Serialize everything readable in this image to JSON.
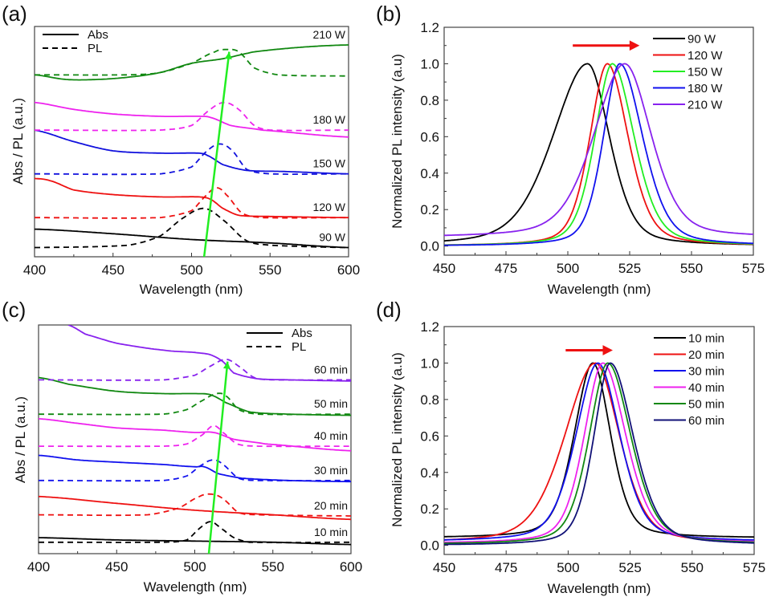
{
  "chart_data": [
    {
      "panel": "(a)",
      "type": "line",
      "title": "",
      "xlabel": "Wavelength (nm)",
      "ylabel": "Abs / PL (a.u.)",
      "xlim": [
        400,
        600
      ],
      "xticks": [
        400,
        450,
        500,
        550,
        600
      ],
      "yticks": [],
      "ylim": [
        0,
        1
      ],
      "legend": {
        "position": "top-left",
        "entries": [
          {
            "label": "Abs",
            "style": "solid"
          },
          {
            "label": "PL",
            "style": "dashed"
          }
        ]
      },
      "annotation": {
        "type": "arrow",
        "color": "#22ee22",
        "from": [
          508,
          0.0
        ],
        "to": [
          524,
          0.89
        ],
        "description": "PL peak red-shift guide"
      },
      "series": [
        {
          "name": "90 W",
          "color": "#000000",
          "offset": 0.04,
          "abs": {
            "x": [
              400,
              450,
              500,
              550,
              600
            ],
            "y": [
              0.08,
              0.06,
              0.035,
              0.02,
              0.0
            ]
          },
          "pl": {
            "x": [
              400,
              460,
              480,
              495,
              508,
              520,
              535,
              550,
              600
            ],
            "y": [
              0.0,
              0.01,
              0.05,
              0.13,
              0.17,
              0.12,
              0.03,
              0.01,
              0.0
            ]
          },
          "label": "90 W"
        },
        {
          "name": "120 W",
          "color": "#ee1111",
          "offset": 0.17,
          "abs": {
            "x": [
              400,
              410,
              425,
              450,
              480,
              505,
              512,
              520,
              530,
              550,
              600
            ],
            "y": [
              0.17,
              0.16,
              0.12,
              0.1,
              0.09,
              0.09,
              0.08,
              0.04,
              0.01,
              0.005,
              0.0
            ]
          },
          "pl": {
            "x": [
              400,
              480,
              500,
              510,
              516,
              522,
              532,
              545,
              600
            ],
            "y": [
              0.0,
              0.0,
              0.03,
              0.1,
              0.13,
              0.1,
              0.02,
              0.0,
              0.0
            ]
          },
          "label": "120 W"
        },
        {
          "name": "150 W",
          "color": "#1111dd",
          "offset": 0.36,
          "abs": {
            "x": [
              400,
              425,
              450,
              480,
              505,
              510,
              520,
              535,
              560,
              600
            ],
            "y": [
              0.19,
              0.14,
              0.1,
              0.09,
              0.09,
              0.08,
              0.04,
              0.015,
              0.01,
              0.0
            ]
          },
          "pl": {
            "x": [
              400,
              480,
              500,
              510,
              518,
              526,
              535,
              550,
              600
            ],
            "y": [
              0.0,
              0.0,
              0.03,
              0.1,
              0.13,
              0.1,
              0.02,
              0.0,
              0.0
            ]
          },
          "label": "150 W"
        },
        {
          "name": "180 W",
          "color": "#ee22ee",
          "offset": 0.55,
          "abs": {
            "x": [
              400,
              425,
              450,
              480,
              505,
              512,
              525,
              545,
              600
            ],
            "y": [
              0.12,
              0.09,
              0.07,
              0.06,
              0.06,
              0.055,
              0.02,
              0.0,
              -0.03
            ]
          },
          "pl": {
            "x": [
              400,
              480,
              500,
              512,
              521,
              530,
              540,
              550,
              600
            ],
            "y": [
              0.0,
              0.0,
              0.02,
              0.09,
              0.12,
              0.09,
              0.02,
              0.0,
              0.0
            ]
          },
          "label": "180 W"
        },
        {
          "name": "210 W",
          "color": "#118811",
          "offset": 0.79,
          "abs": {
            "x": [
              400,
              420,
              440,
              460,
              480,
              500,
              520,
              540,
              570,
              600
            ],
            "y": [
              0.0,
              -0.02,
              -0.02,
              -0.01,
              0.01,
              0.05,
              0.07,
              0.1,
              0.12,
              0.13
            ]
          },
          "pl": {
            "x": [
              400,
              460,
              480,
              500,
              515,
              522,
              530,
              540,
              555,
              600
            ],
            "y": [
              0.0,
              0.0,
              0.01,
              0.05,
              0.1,
              0.11,
              0.1,
              0.03,
              0.0,
              -0.005
            ]
          },
          "label": "210 W"
        }
      ]
    },
    {
      "panel": "(b)",
      "type": "line",
      "title": "",
      "xlabel": "Wavelength (nm)",
      "ylabel": "Normalized PL intensity (a.u)",
      "xlim": [
        450,
        575
      ],
      "ylim": [
        -0.05,
        1.2
      ],
      "xticks": [
        450,
        475,
        500,
        525,
        550,
        575
      ],
      "yticks": [
        0.0,
        0.2,
        0.4,
        0.6,
        0.8,
        1.0,
        1.2
      ],
      "ytick_labels": [
        "0.0",
        "0.2",
        "0.4",
        "0.6",
        "0.8",
        "1.0",
        "1.2"
      ],
      "legend": {
        "position": "top-right"
      },
      "annotation": {
        "type": "arrow",
        "color": "#ee1111",
        "from": [
          502,
          1.1
        ],
        "to": [
          529,
          1.1
        ],
        "description": "red-shift"
      },
      "series": [
        {
          "name": "90 W",
          "color": "#000000",
          "peak": 508,
          "left_width": 16,
          "right_width": 10,
          "baseline": 0.0,
          "start_value": 0.03
        },
        {
          "name": "120 W",
          "color": "#ee1111",
          "peak": 516,
          "left_width": 8,
          "right_width": 9.5,
          "baseline": 0.0
        },
        {
          "name": "150 W",
          "color": "#22ee22",
          "peak": 518,
          "left_width": 8,
          "right_width": 10,
          "baseline": 0.0
        },
        {
          "name": "180 W",
          "color": "#1111ee",
          "peak": 521,
          "left_width": 7.5,
          "right_width": 10.5,
          "baseline": 0.0
        },
        {
          "name": "210 W",
          "color": "#8822ee",
          "peak": 523,
          "left_width": 14,
          "right_width": 12,
          "baseline": 0.045
        }
      ]
    },
    {
      "panel": "(c)",
      "type": "line",
      "title": "",
      "xlabel": "Wavelength (nm)",
      "ylabel": "Abs / PL (a.u.)",
      "xlim": [
        400,
        600
      ],
      "xticks": [
        400,
        450,
        500,
        550,
        600
      ],
      "yticks": [],
      "ylim": [
        0,
        1
      ],
      "legend": {
        "position": "top-right",
        "entries": [
          {
            "label": "Abs",
            "style": "solid"
          },
          {
            "label": "PL",
            "style": "dashed"
          }
        ]
      },
      "annotation": {
        "type": "arrow",
        "color": "#22ee22",
        "from": [
          509,
          0.0
        ],
        "to": [
          521,
          0.84
        ],
        "description": "PL peak red-shift guide"
      },
      "series": [
        {
          "name": "10 min",
          "color": "#000000",
          "offset": 0.05,
          "abs": {
            "x": [
              400,
              450,
              500,
              550,
              600
            ],
            "y": [
              0.02,
              0.01,
              0.005,
              0.0,
              -0.01
            ]
          },
          "pl": {
            "x": [
              400,
              480,
              495,
              503,
              510,
              517,
              525,
              535,
              600
            ],
            "y": [
              0.0,
              0.0,
              0.01,
              0.06,
              0.09,
              0.06,
              0.02,
              0.0,
              0.0
            ]
          },
          "label": "10 min"
        },
        {
          "name": "20 min",
          "color": "#ee1111",
          "offset": 0.17,
          "abs": {
            "x": [
              400,
              450,
              500,
              550,
              600
            ],
            "y": [
              0.08,
              0.05,
              0.02,
              0.0,
              -0.02
            ]
          },
          "pl": {
            "x": [
              400,
              470,
              490,
              503,
              511,
              518,
              528,
              540,
              600
            ],
            "y": [
              0.0,
              0.0,
              0.03,
              0.08,
              0.09,
              0.07,
              0.01,
              0.0,
              -0.005
            ]
          },
          "label": "20 min"
        },
        {
          "name": "30 min",
          "color": "#1111ee",
          "offset": 0.32,
          "abs": {
            "x": [
              400,
              425,
              450,
              480,
              500,
              506,
              515,
              530,
              560,
              600
            ],
            "y": [
              0.11,
              0.09,
              0.08,
              0.07,
              0.06,
              0.06,
              0.03,
              0.01,
              0.0,
              -0.005
            ]
          },
          "pl": {
            "x": [
              400,
              480,
              495,
              505,
              512,
              518,
              528,
              540,
              600
            ],
            "y": [
              0.0,
              0.0,
              0.02,
              0.07,
              0.09,
              0.07,
              0.01,
              0.0,
              0.0
            ]
          },
          "label": "30 min"
        },
        {
          "name": "40 min",
          "color": "#ee22ee",
          "offset": 0.47,
          "abs": {
            "x": [
              400,
              425,
              450,
              480,
              500,
              512,
              525,
              545,
              600
            ],
            "y": [
              0.12,
              0.1,
              0.08,
              0.07,
              0.06,
              0.06,
              0.03,
              0.01,
              -0.02
            ]
          },
          "pl": {
            "x": [
              400,
              480,
              495,
              505,
              512,
              518,
              527,
              540,
              600
            ],
            "y": [
              0.0,
              0.0,
              0.01,
              0.05,
              0.09,
              0.06,
              0.01,
              0.0,
              0.0
            ]
          },
          "label": "40 min"
        },
        {
          "name": "50 min",
          "color": "#118811",
          "offset": 0.61,
          "abs": {
            "x": [
              400,
              420,
              450,
              480,
              500,
              510,
              520,
              535,
              560,
              600
            ],
            "y": [
              0.16,
              0.13,
              0.1,
              0.09,
              0.09,
              0.085,
              0.05,
              0.01,
              0.0,
              -0.005
            ]
          },
          "pl": {
            "x": [
              400,
              480,
              495,
              505,
              514,
              520,
              528,
              540,
              600
            ],
            "y": [
              0.0,
              0.0,
              0.02,
              0.06,
              0.09,
              0.08,
              0.02,
              0.0,
              0.0
            ]
          },
          "label": "50 min"
        },
        {
          "name": "60 min",
          "color": "#8822ee",
          "offset": 0.76,
          "abs": {
            "x": [
              419,
              430,
              450,
              480,
              500,
              510,
              518,
              525,
              540,
              560,
              600
            ],
            "y": [
              0.24,
              0.2,
              0.16,
              0.13,
              0.12,
              0.11,
              0.08,
              0.03,
              0.005,
              0.0,
              -0.005
            ]
          },
          "pl": {
            "x": [
              400,
              480,
              500,
              510,
              520,
              528,
              538,
              550,
              600
            ],
            "y": [
              0.0,
              0.0,
              0.02,
              0.06,
              0.09,
              0.06,
              0.01,
              0.0,
              0.0
            ]
          },
          "label": "60 min"
        }
      ]
    },
    {
      "panel": "(d)",
      "type": "line",
      "title": "",
      "xlabel": "Wavelength (nm)",
      "ylabel": "Normalized PL intensity (a.u)",
      "xlim": [
        450,
        575
      ],
      "ylim": [
        -0.05,
        1.2
      ],
      "xticks": [
        450,
        475,
        500,
        525,
        550,
        575
      ],
      "yticks": [
        0.0,
        0.2,
        0.4,
        0.6,
        0.8,
        1.0,
        1.2
      ],
      "ytick_labels": [
        "0.0",
        "0.2",
        "0.4",
        "0.6",
        "0.8",
        "1.0",
        "1.2"
      ],
      "legend": {
        "position": "top-right"
      },
      "annotation": {
        "type": "arrow",
        "color": "#ee1111",
        "from": [
          499,
          1.07
        ],
        "to": [
          518,
          1.07
        ],
        "description": "red-shift"
      },
      "series": [
        {
          "name": "10 min",
          "color": "#000000",
          "peak": 510,
          "left_width": 8.5,
          "right_width": 8,
          "baseline": 0.04,
          "start_value": 0.055
        },
        {
          "name": "20 min",
          "color": "#ee1111",
          "peak": 511,
          "left_width": 14,
          "right_width": 11,
          "baseline": 0.01
        },
        {
          "name": "30 min",
          "color": "#1111ee",
          "peak": 512,
          "left_width": 10,
          "right_width": 10,
          "baseline": 0.02
        },
        {
          "name": "40 min",
          "color": "#ee22ee",
          "peak": 514,
          "left_width": 8.5,
          "right_width": 10.5,
          "baseline": 0.01
        },
        {
          "name": "50 min",
          "color": "#118811",
          "peak": 516,
          "left_width": 8.5,
          "right_width": 10.5,
          "baseline": 0.005
        },
        {
          "name": "60 min",
          "color": "#111177",
          "peak": 517,
          "left_width": 7.5,
          "right_width": 10.5,
          "baseline": 0.0
        }
      ]
    }
  ]
}
